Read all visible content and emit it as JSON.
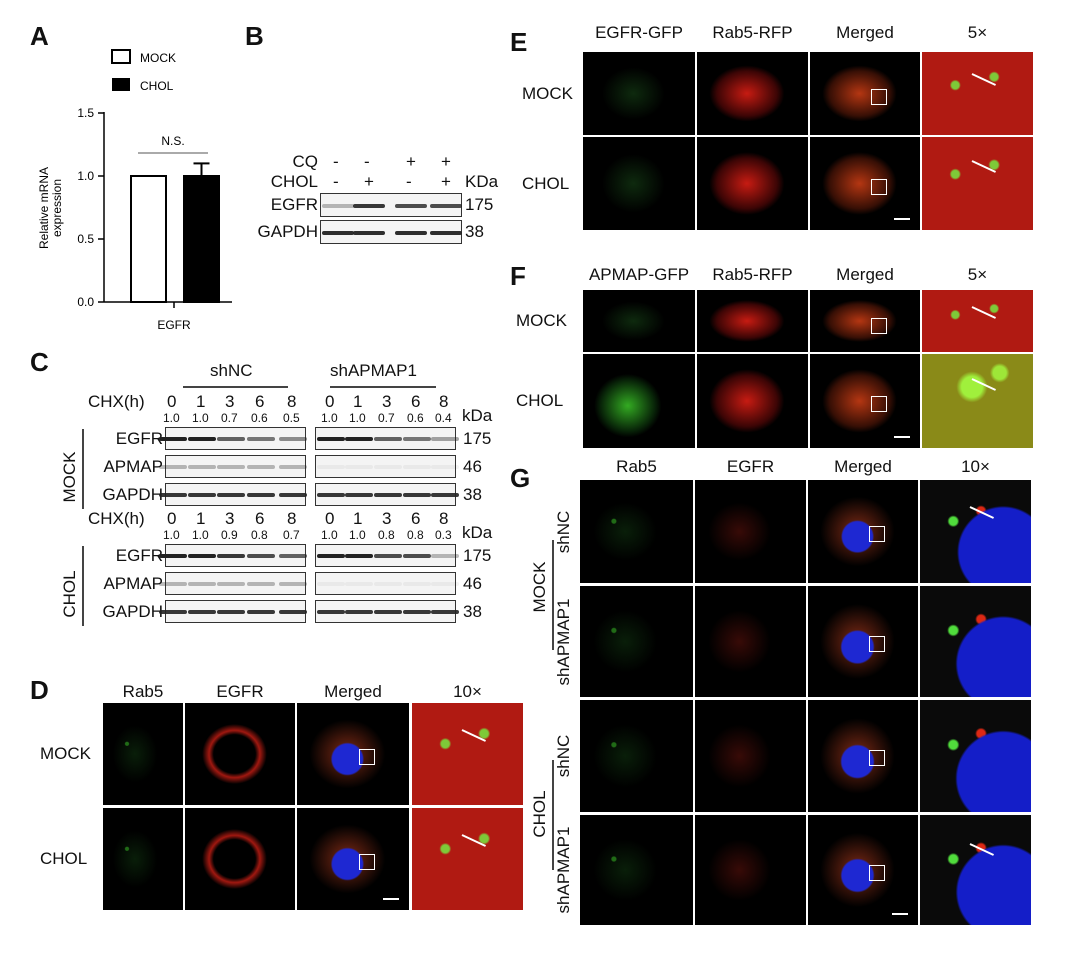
{
  "panels": {
    "A": "A",
    "B": "B",
    "C": "C",
    "D": "D",
    "E": "E",
    "F": "F",
    "G": "G"
  },
  "chart_data": {
    "type": "bar",
    "categories": [
      "EGFR"
    ],
    "series": [
      {
        "name": "MOCK",
        "values": [
          1.0
        ],
        "error": [
          0
        ],
        "color": "#ffffff"
      },
      {
        "name": "CHOL",
        "values": [
          1.0
        ],
        "error": [
          0.1
        ],
        "color": "#000000"
      }
    ],
    "ylabel": "Relative mRNA expression",
    "ylabel_lines": [
      "Relative mRNA",
      "expression"
    ],
    "xlabel": "EGFR",
    "ylim": [
      0,
      1.5
    ],
    "yticks": [
      "0.0",
      "0.5",
      "1.0",
      "1.5"
    ],
    "annotation": "N.S.",
    "legend": "top",
    "grid": false
  },
  "B": {
    "rows": [
      "CQ",
      "CHOL"
    ],
    "cq": [
      "-",
      "-",
      "+",
      "+"
    ],
    "chol": [
      "-",
      "+",
      "-",
      "+"
    ],
    "unit": "KDa",
    "blots": [
      {
        "name": "EGFR",
        "kda": "175",
        "intensity": [
          0.3,
          0.9,
          0.8,
          0.8
        ]
      },
      {
        "name": "GAPDH",
        "kda": "38",
        "intensity": [
          0.95,
          0.95,
          0.95,
          0.95
        ]
      }
    ]
  },
  "C": {
    "groups": [
      "shNC",
      "shAPMAP1"
    ],
    "chx_label": "CHX(h)",
    "unit": "kDa",
    "times": [
      "0",
      "1",
      "3",
      "6",
      "8"
    ],
    "conditions": [
      {
        "name": "MOCK",
        "ratios": [
          [
            "1.0",
            "1.0",
            "0.7",
            "0.6",
            "0.5"
          ],
          [
            "1.0",
            "1.0",
            "0.7",
            "0.6",
            "0.4"
          ]
        ],
        "blots": [
          {
            "name": "EGFR",
            "kda": "175"
          },
          {
            "name": "APMAP",
            "kda": "46"
          },
          {
            "name": "GAPDH",
            "kda": "38"
          }
        ]
      },
      {
        "name": "CHOL",
        "ratios": [
          [
            "1.0",
            "1.0",
            "0.9",
            "0.8",
            "0.7"
          ],
          [
            "1.0",
            "1.0",
            "0.8",
            "0.8",
            "0.3"
          ]
        ],
        "blots": [
          {
            "name": "EGFR",
            "kda": "175"
          },
          {
            "name": "APMAP",
            "kda": "46"
          },
          {
            "name": "GAPDH",
            "kda": "38"
          }
        ]
      }
    ]
  },
  "D": {
    "columns": [
      "Rab5",
      "EGFR",
      "Merged",
      "10×"
    ],
    "rows": [
      "MOCK",
      "CHOL"
    ]
  },
  "E": {
    "columns": [
      "EGFR-GFP",
      "Rab5-RFP",
      "Merged",
      "5×"
    ],
    "rows": [
      "MOCK",
      "CHOL"
    ]
  },
  "F": {
    "columns": [
      "APMAP-GFP",
      "Rab5-RFP",
      "Merged",
      "5×"
    ],
    "rows": [
      "MOCK",
      "CHOL"
    ]
  },
  "G": {
    "columns": [
      "Rab5",
      "EGFR",
      "Merged",
      "10×"
    ],
    "conditions": [
      "MOCK",
      "CHOL"
    ],
    "rows": [
      "shNC",
      "shAPMAP1",
      "shNC",
      "shAPMAP1"
    ]
  }
}
